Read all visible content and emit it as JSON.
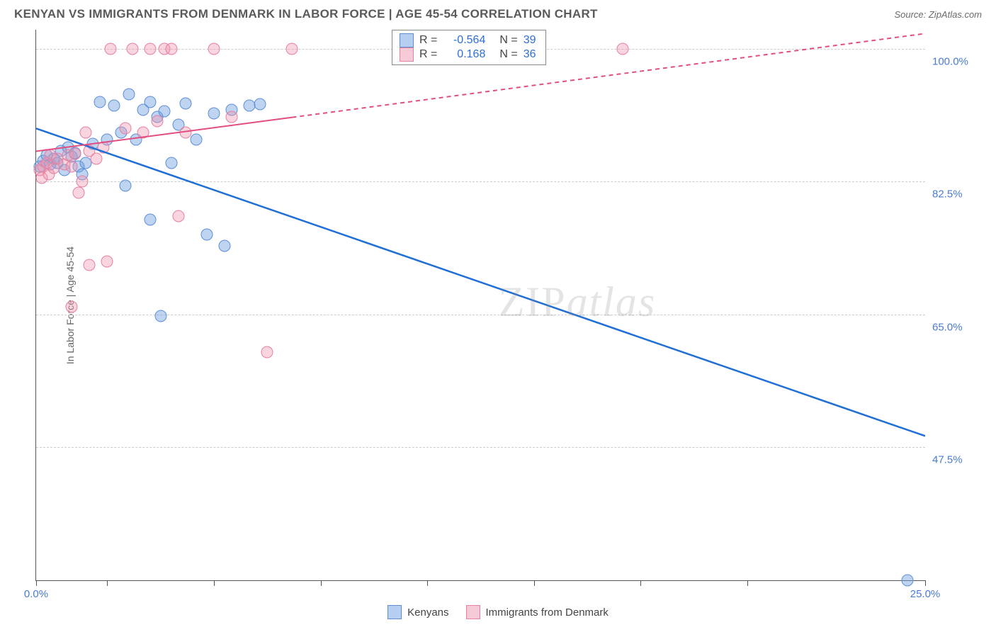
{
  "header": {
    "title": "KENYAN VS IMMIGRANTS FROM DENMARK IN LABOR FORCE | AGE 45-54 CORRELATION CHART",
    "source": "Source: ZipAtlas.com"
  },
  "chart": {
    "type": "scatter",
    "yaxis_title": "In Labor Force | Age 45-54",
    "xlim": [
      0,
      25
    ],
    "ylim": [
      30,
      102.5
    ],
    "xticks": [
      0,
      2,
      5,
      8,
      11,
      14,
      17,
      20,
      25
    ],
    "xtick_labels": {
      "0": "0.0%",
      "25": "25.0%"
    },
    "yticks": [
      47.5,
      65.0,
      82.5,
      100.0
    ],
    "ytick_labels": [
      "47.5%",
      "65.0%",
      "82.5%",
      "100.0%"
    ],
    "background_color": "#ffffff",
    "grid_color": "#cccccc",
    "axis_color": "#555555",
    "label_color": "#4a7bd4",
    "marker_radius": 8.5,
    "series": [
      {
        "name": "Kenyans",
        "color_fill": "rgba(110,160,225,0.45)",
        "color_stroke": "#5b8fd6",
        "css": "blue",
        "trend": {
          "x1": 0,
          "y1": 89.5,
          "x2": 25,
          "y2": 49.0,
          "color": "#1f6fd6",
          "width": 2.5,
          "dash_after_x": null
        },
        "points": [
          [
            0.1,
            84.5
          ],
          [
            0.2,
            85.2
          ],
          [
            0.3,
            86
          ],
          [
            0.4,
            84.8
          ],
          [
            0.5,
            85.5
          ],
          [
            0.6,
            85
          ],
          [
            0.7,
            86.5
          ],
          [
            0.8,
            84
          ],
          [
            0.9,
            87
          ],
          [
            1.0,
            85.8
          ],
          [
            1.1,
            86.3
          ],
          [
            1.2,
            84.5
          ],
          [
            1.3,
            83.5
          ],
          [
            1.4,
            85
          ],
          [
            1.6,
            87.5
          ],
          [
            1.8,
            93
          ],
          [
            2.0,
            88
          ],
          [
            2.2,
            92.5
          ],
          [
            2.4,
            89
          ],
          [
            2.6,
            94
          ],
          [
            2.8,
            88
          ],
          [
            3.0,
            92
          ],
          [
            3.2,
            93
          ],
          [
            3.4,
            91
          ],
          [
            3.6,
            91.8
          ],
          [
            3.8,
            85
          ],
          [
            4.0,
            90
          ],
          [
            4.2,
            92.8
          ],
          [
            4.5,
            88
          ],
          [
            5.0,
            91.5
          ],
          [
            5.5,
            92
          ],
          [
            6.0,
            92.5
          ],
          [
            6.3,
            92.7
          ],
          [
            2.5,
            82
          ],
          [
            3.2,
            77.5
          ],
          [
            3.5,
            64.8
          ],
          [
            4.8,
            75.5
          ],
          [
            5.3,
            74
          ],
          [
            24.5,
            30
          ]
        ]
      },
      {
        "name": "Immigrants from Denmark",
        "color_fill": "rgba(240,150,175,0.40)",
        "color_stroke": "#e67fa0",
        "css": "pink",
        "trend": {
          "x1": 0,
          "y1": 86.5,
          "x2": 25,
          "y2": 102,
          "color": "#e34d80",
          "width": 2,
          "dash_after_x": 7.2
        },
        "points": [
          [
            0.1,
            84
          ],
          [
            0.15,
            83
          ],
          [
            0.2,
            84.5
          ],
          [
            0.3,
            85
          ],
          [
            0.35,
            83.5
          ],
          [
            0.4,
            86
          ],
          [
            0.5,
            84.3
          ],
          [
            0.6,
            85.5
          ],
          [
            0.8,
            84.8
          ],
          [
            0.9,
            86
          ],
          [
            1.0,
            84.5
          ],
          [
            1.1,
            86.2
          ],
          [
            1.2,
            81
          ],
          [
            1.3,
            82.5
          ],
          [
            1.4,
            89
          ],
          [
            1.5,
            86.5
          ],
          [
            1.7,
            85.5
          ],
          [
            1.9,
            87
          ],
          [
            2.1,
            100
          ],
          [
            2.5,
            89.5
          ],
          [
            2.7,
            100
          ],
          [
            3.0,
            89
          ],
          [
            3.2,
            100
          ],
          [
            3.4,
            90.5
          ],
          [
            3.6,
            100
          ],
          [
            3.8,
            100
          ],
          [
            4.0,
            78
          ],
          [
            4.2,
            89
          ],
          [
            5.0,
            100
          ],
          [
            5.5,
            91
          ],
          [
            1.0,
            66
          ],
          [
            1.5,
            71.5
          ],
          [
            2.0,
            72
          ],
          [
            7.2,
            100
          ],
          [
            6.5,
            60
          ],
          [
            16.5,
            100
          ]
        ]
      }
    ],
    "stats_box": {
      "rows": [
        {
          "swatch": "blue",
          "r_label": "R =",
          "r_value": "-0.564",
          "n_label": "N =",
          "n_value": "39"
        },
        {
          "swatch": "pink",
          "r_label": "R =",
          "r_value": "0.168",
          "n_label": "N =",
          "n_value": "36"
        }
      ]
    },
    "bottom_legend": [
      {
        "swatch": "blue",
        "label": "Kenyans"
      },
      {
        "swatch": "pink",
        "label": "Immigrants from Denmark"
      }
    ],
    "watermark": "ZIPatlas"
  }
}
